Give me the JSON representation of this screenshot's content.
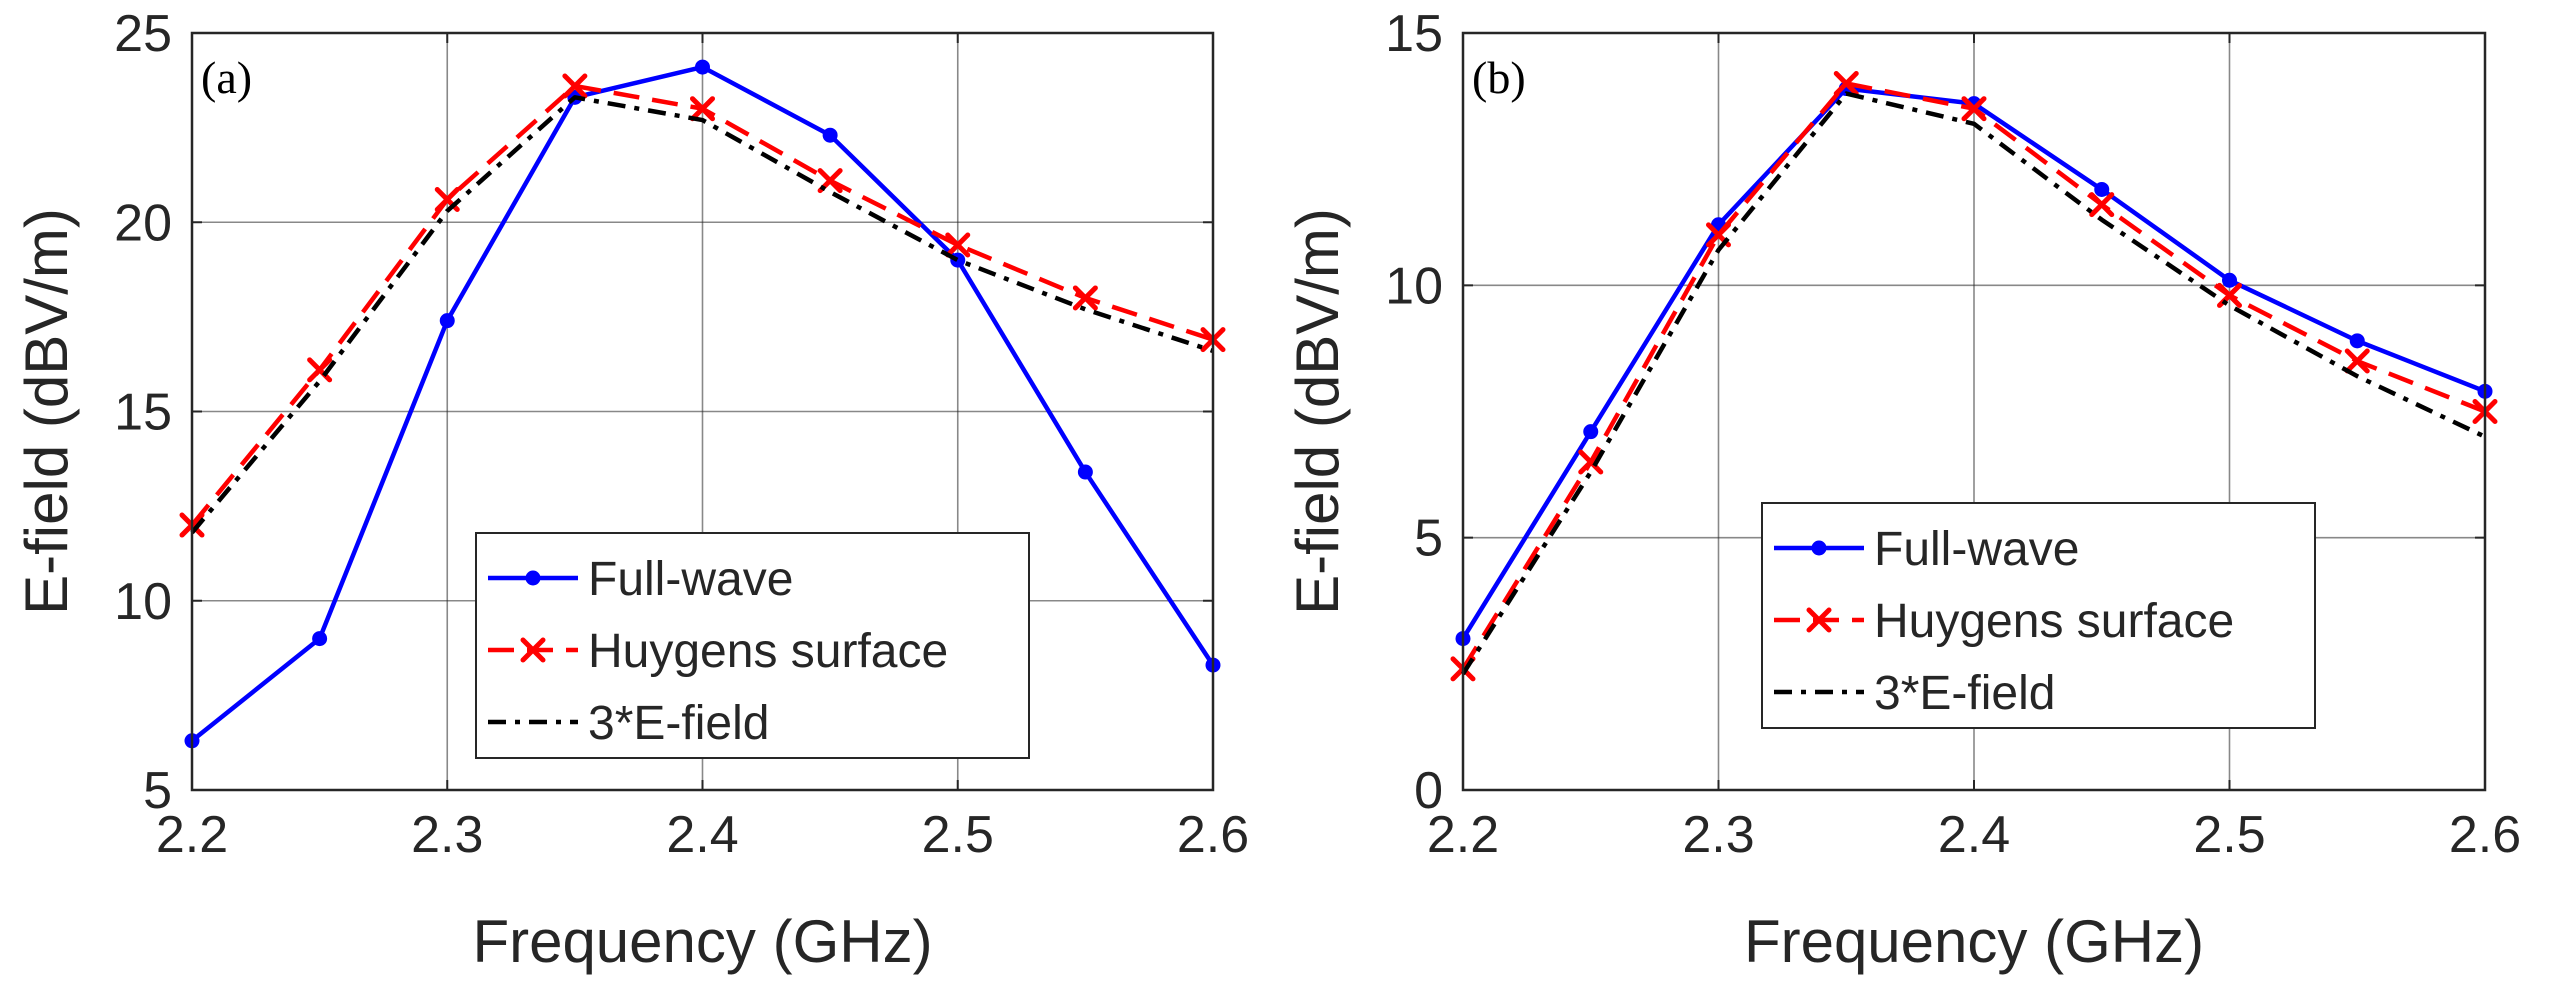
{
  "chart_data": [
    {
      "type": "line",
      "panel_label": "(a)",
      "xlabel": "Frequency (GHz)",
      "ylabel": "E-field (dBV/m)",
      "xlim": [
        2.2,
        2.6
      ],
      "ylim": [
        5,
        25
      ],
      "xticks": [
        2.2,
        2.3,
        2.4,
        2.5,
        2.6
      ],
      "xtick_labels": [
        "2.2",
        "2.3",
        "2.4",
        "2.5",
        "2.6"
      ],
      "yticks": [
        5,
        10,
        15,
        20,
        25
      ],
      "ytick_labels": [
        "5",
        "10",
        "15",
        "20",
        "25"
      ],
      "grid": true,
      "legend_position": "lower-center",
      "x": [
        2.2,
        2.25,
        2.3,
        2.35,
        2.4,
        2.45,
        2.5,
        2.55,
        2.6
      ],
      "series": [
        {
          "name": "Full-wave",
          "color": "#0000ff",
          "style": "solid",
          "marker": "dot",
          "values": [
            6.3,
            9.0,
            17.4,
            23.3,
            24.1,
            22.3,
            19.0,
            13.4,
            8.3
          ]
        },
        {
          "name": "Huygens surface",
          "color": "#ff0000",
          "style": "dashed",
          "marker": "x",
          "values": [
            12.0,
            16.1,
            20.6,
            23.6,
            23.0,
            21.1,
            19.4,
            18.0,
            16.9
          ]
        },
        {
          "name": "3*E-field",
          "color": "#000000",
          "style": "dashdot",
          "marker": "none",
          "values": [
            11.8,
            15.8,
            20.3,
            23.3,
            22.7,
            20.8,
            19.0,
            17.7,
            16.6
          ]
        }
      ]
    },
    {
      "type": "line",
      "panel_label": "(b)",
      "xlabel": "Frequency (GHz)",
      "ylabel": "E-field (dBV/m)",
      "xlim": [
        2.2,
        2.6
      ],
      "ylim": [
        0,
        15
      ],
      "xticks": [
        2.2,
        2.3,
        2.4,
        2.5,
        2.6
      ],
      "xtick_labels": [
        "2.2",
        "2.3",
        "2.4",
        "2.5",
        "2.6"
      ],
      "yticks": [
        0,
        5,
        10,
        15
      ],
      "ytick_labels": [
        "0",
        "5",
        "10",
        "15"
      ],
      "grid": true,
      "legend_position": "lower-center",
      "x": [
        2.2,
        2.25,
        2.3,
        2.35,
        2.4,
        2.45,
        2.5,
        2.55,
        2.6
      ],
      "series": [
        {
          "name": "Full-wave",
          "color": "#0000ff",
          "style": "solid",
          "marker": "dot",
          "values": [
            3.0,
            7.1,
            11.2,
            13.9,
            13.6,
            11.9,
            10.1,
            8.9,
            7.9
          ]
        },
        {
          "name": "Huygens surface",
          "color": "#ff0000",
          "style": "dashed",
          "marker": "x",
          "values": [
            2.4,
            6.5,
            11.0,
            14.0,
            13.5,
            11.6,
            9.8,
            8.5,
            7.5
          ]
        },
        {
          "name": "3*E-field",
          "color": "#000000",
          "style": "dashdot",
          "marker": "none",
          "values": [
            2.3,
            6.3,
            10.7,
            13.8,
            13.2,
            11.3,
            9.6,
            8.2,
            7.0
          ]
        }
      ]
    }
  ]
}
